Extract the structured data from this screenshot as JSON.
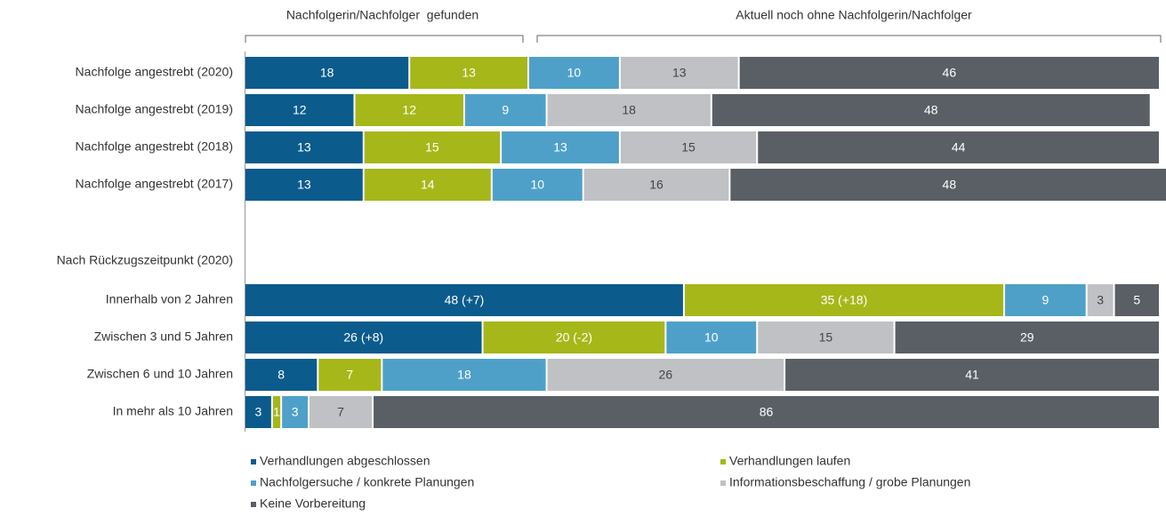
{
  "chart_data": {
    "type": "stacked-bar-horizontal",
    "annotations": [
      "Nachfolgerin/Nachfolger  gefunden",
      "Aktuell noch ohne Nachfolgerin/Nachfolger"
    ],
    "categories": [
      "Nachfolge angestrebt (2020)",
      "Nachfolge angestrebt (2019)",
      "Nachfolge angestrebt (2018)",
      "Nachfolge angestrebt (2017)",
      "Nach Rückzugszeitpunkt (2020)",
      "Innerhalb von 2 Jahren",
      "Zwischen 3 und 5 Jahren",
      "Zwischen 6 und 10 Jahren",
      "In mehr als 10 Jahren"
    ],
    "xlim": [
      0,
      100
    ],
    "series": [
      {
        "name": "Verhandlungen abgeschlossen",
        "color": "#0b5b8c",
        "values": [
          18,
          12,
          13,
          13,
          null,
          48,
          26,
          8,
          3
        ],
        "value_labels": [
          "18",
          "12",
          "13",
          "13",
          null,
          "48 (+7)",
          "26 (+8)",
          "8",
          "3"
        ]
      },
      {
        "name": "Verhandlungen laufen",
        "color": "#a6b719",
        "values": [
          13,
          12,
          15,
          14,
          null,
          35,
          20,
          7,
          1
        ],
        "value_labels": [
          "13",
          "12",
          "15",
          "14",
          null,
          "35 (+18)",
          "20 (-2)",
          "7",
          "1"
        ]
      },
      {
        "name": "Nachfolgersuche / konkrete Planungen",
        "color": "#4fa0c9",
        "values": [
          10,
          9,
          13,
          10,
          null,
          9,
          10,
          18,
          3
        ]
      },
      {
        "name": "Informationsbeschaffung / grobe Planungen",
        "color": "#bfc1c4",
        "values": [
          13,
          18,
          15,
          16,
          null,
          3,
          15,
          26,
          7
        ]
      },
      {
        "name": "Keine Vorbereitung",
        "color": "#5a5f66",
        "values": [
          46,
          48,
          44,
          48,
          null,
          5,
          29,
          41,
          86
        ]
      }
    ]
  }
}
